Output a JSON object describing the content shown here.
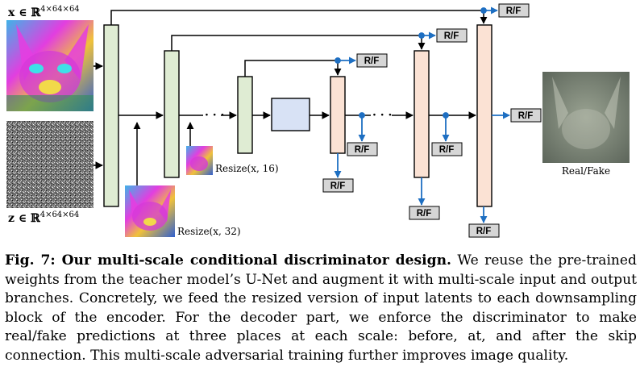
{
  "figure": {
    "input_x_label": "x ∈ ℝ",
    "input_x_sup": "4×64×64",
    "input_z_label": "z ∈ ℝ",
    "input_z_sup": "4×64×64",
    "resize_16_label": "Resize(x, 16)",
    "resize_32_label": "Resize(x, 32)",
    "rf_label": "R/F",
    "output_label": "Real/Fake",
    "ellipsis": "· · ·"
  },
  "caption": {
    "lead": "Fig. 7: Our multi-scale conditional discriminator design.",
    "body": "We reuse the pre-trained weights from the teacher model’s U-Net and augment it with multi-scale input and output branches. Concretely, we feed the resized version of input latents to each downsampling block of the encoder. For the decoder part, we enforce the discriminator to make real/fake predictions at three places at each scale: before, at, and after the skip connection. This multi-scale adversarial training further improves image quality."
  },
  "colors": {
    "encoder_block": "#dfecd3",
    "middle_block": "#d8e2f5",
    "decoder_block": "#fbe2d4",
    "arrow_blue": "#1e6fc2",
    "rf_box": "#d6d6d6"
  }
}
